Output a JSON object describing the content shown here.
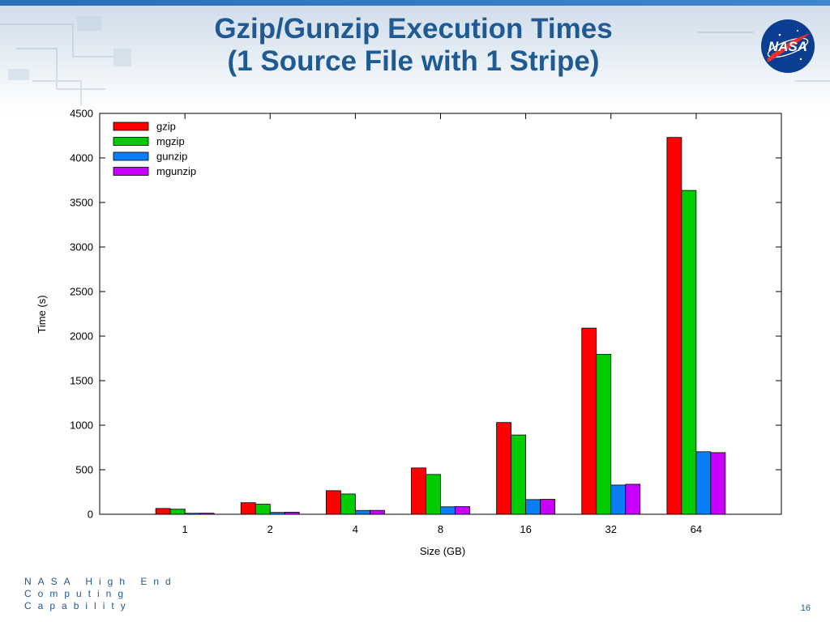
{
  "slide": {
    "title_line1": "Gzip/Gunzip Execution Times",
    "title_line2": "(1 Source File with 1 Stripe)",
    "logo_text": "NASA",
    "footer_line1": "NASA High End",
    "footer_line2": "Computing",
    "footer_line3": "Capability",
    "page_number": "16"
  },
  "colors": {
    "title": "#1f5a93",
    "gzip": "#ff0000",
    "mgzip": "#00cc00",
    "gunzip": "#0a7ff5",
    "mgunzip": "#c800ff"
  },
  "chart_data": {
    "type": "bar",
    "title": "",
    "xlabel": "Size (GB)",
    "ylabel": "Time (s)",
    "ylim": [
      0,
      4500
    ],
    "yticks": [
      0,
      500,
      1000,
      1500,
      2000,
      2500,
      3000,
      3500,
      4000,
      4500
    ],
    "categories": [
      "1",
      "2",
      "4",
      "8",
      "16",
      "32",
      "64"
    ],
    "grid": false,
    "legend_position": "top-left",
    "series": [
      {
        "name": "gzip",
        "color": "#ff0000",
        "values": [
          65,
          130,
          265,
          520,
          1030,
          2090,
          4230
        ]
      },
      {
        "name": "mgzip",
        "color": "#00cc00",
        "values": [
          57,
          113,
          228,
          447,
          890,
          1795,
          3635
        ]
      },
      {
        "name": "gunzip",
        "color": "#0a7ff5",
        "values": [
          11,
          21,
          43,
          84,
          165,
          328,
          702
        ]
      },
      {
        "name": "mgunzip",
        "color": "#c800ff",
        "values": [
          12,
          23,
          44,
          86,
          168,
          337,
          692
        ]
      }
    ]
  }
}
